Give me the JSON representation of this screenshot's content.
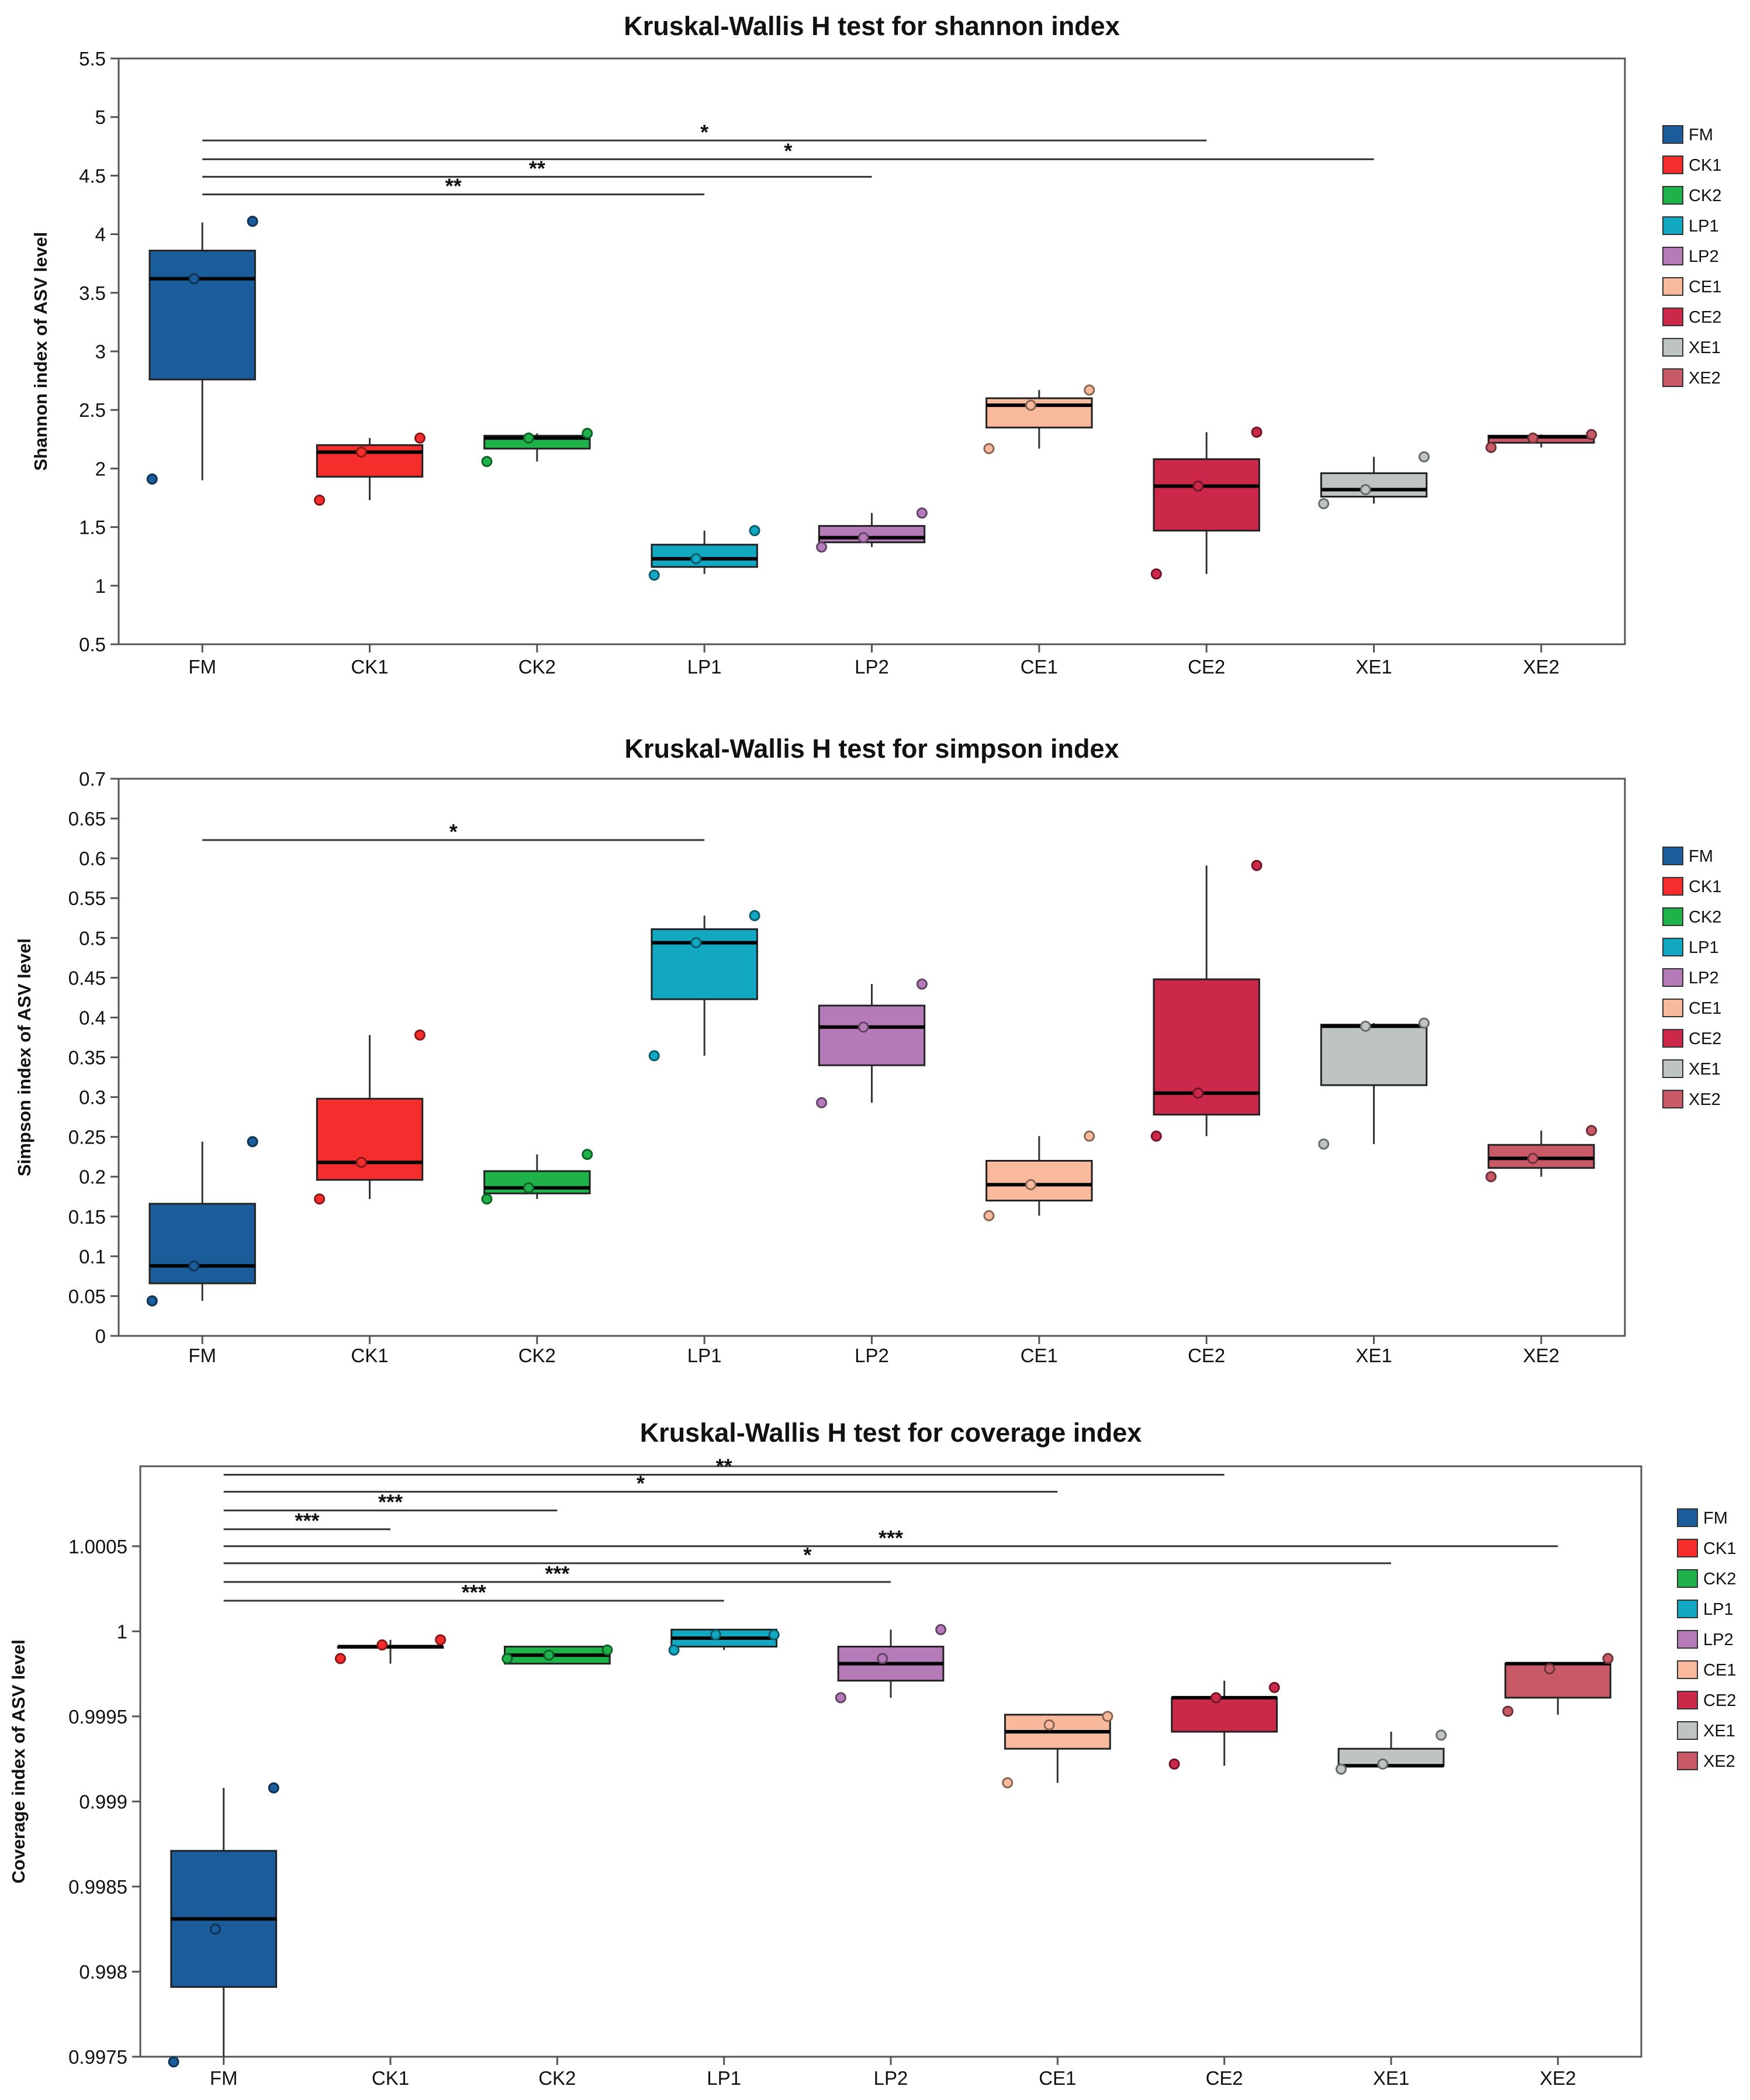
{
  "groups": [
    "FM",
    "CK1",
    "CK2",
    "LP1",
    "LP2",
    "CE1",
    "CE2",
    "XE1",
    "XE2"
  ],
  "colors": {
    "FM": "#1a5d9a",
    "CK1": "#f52d2d",
    "CK2": "#1fb24a",
    "LP1": "#12a8c2",
    "LP2": "#b47bb8",
    "CE1": "#f8b99c",
    "CE2": "#cc2849",
    "XE1": "#bdc4c3",
    "XE2": "#c75a66"
  },
  "chart_data": [
    {
      "type": "box",
      "title": "Kruskal-Wallis H test for shannon index",
      "ylabel": "Shannon index of ASV level",
      "xlabel": "",
      "ylim": [
        0.5,
        5.5
      ],
      "yticks": [
        0.5,
        1,
        1.5,
        2,
        2.5,
        3,
        3.5,
        4,
        4.5,
        5,
        5.5
      ],
      "ytick_labels": [
        "0.5",
        "1",
        "1.5",
        "2",
        "2.5",
        "3",
        "3.5",
        "4",
        "4.5",
        "5",
        "5.5"
      ],
      "categories": [
        "FM",
        "CK1",
        "CK2",
        "LP1",
        "LP2",
        "CE1",
        "CE2",
        "XE1",
        "XE2"
      ],
      "boxes": [
        {
          "group": "FM",
          "whisker_low": 1.9,
          "q1": 2.76,
          "median": 3.62,
          "q3": 3.86,
          "whisker_high": 4.1,
          "points": [
            1.91,
            3.62,
            4.11
          ]
        },
        {
          "group": "CK1",
          "whisker_low": 1.73,
          "q1": 1.93,
          "median": 2.14,
          "q3": 2.2,
          "whisker_high": 2.26,
          "points": [
            1.73,
            2.14,
            2.26
          ]
        },
        {
          "group": "CK2",
          "whisker_low": 2.06,
          "q1": 2.17,
          "median": 2.26,
          "q3": 2.28,
          "whisker_high": 2.3,
          "points": [
            2.06,
            2.26,
            2.3
          ]
        },
        {
          "group": "LP1",
          "whisker_low": 1.1,
          "q1": 1.16,
          "median": 1.23,
          "q3": 1.35,
          "whisker_high": 1.47,
          "points": [
            1.09,
            1.23,
            1.47
          ]
        },
        {
          "group": "LP2",
          "whisker_low": 1.33,
          "q1": 1.37,
          "median": 1.41,
          "q3": 1.51,
          "whisker_high": 1.62,
          "points": [
            1.33,
            1.41,
            1.62
          ]
        },
        {
          "group": "CE1",
          "whisker_low": 2.17,
          "q1": 2.35,
          "median": 2.54,
          "q3": 2.6,
          "whisker_high": 2.67,
          "points": [
            2.17,
            2.54,
            2.67
          ]
        },
        {
          "group": "CE2",
          "whisker_low": 1.1,
          "q1": 1.47,
          "median": 1.85,
          "q3": 2.08,
          "whisker_high": 2.31,
          "points": [
            1.1,
            1.85,
            2.31
          ]
        },
        {
          "group": "XE1",
          "whisker_low": 1.7,
          "q1": 1.76,
          "median": 1.82,
          "q3": 1.96,
          "whisker_high": 2.1,
          "points": [
            1.7,
            1.82,
            2.1
          ]
        },
        {
          "group": "XE2",
          "whisker_low": 2.18,
          "q1": 2.22,
          "median": 2.27,
          "q3": 2.28,
          "whisker_high": 2.29,
          "points": [
            2.18,
            2.26,
            2.29
          ]
        }
      ],
      "significance": [
        {
          "from": "FM",
          "to": "CE2",
          "y": 4.8,
          "label": "*"
        },
        {
          "from": "FM",
          "to": "XE1",
          "y": 4.64,
          "label": "*"
        },
        {
          "from": "FM",
          "to": "LP2",
          "y": 4.49,
          "label": "**"
        },
        {
          "from": "FM",
          "to": "LP1",
          "y": 4.34,
          "label": "**"
        }
      ]
    },
    {
      "type": "box",
      "title": "Kruskal-Wallis H test for simpson index",
      "ylabel": "Simpson index of ASV level",
      "xlabel": "",
      "ylim": [
        0,
        0.7
      ],
      "yticks": [
        0,
        0.05,
        0.1,
        0.15,
        0.2,
        0.25,
        0.3,
        0.35,
        0.4,
        0.45,
        0.5,
        0.55,
        0.6,
        0.65,
        0.7
      ],
      "ytick_labels": [
        "0",
        "0.05",
        "0.1",
        "0.15",
        "0.2",
        "0.25",
        "0.3",
        "0.35",
        "0.4",
        "0.45",
        "0.5",
        "0.55",
        "0.6",
        "0.65",
        "0.7"
      ],
      "categories": [
        "FM",
        "CK1",
        "CK2",
        "LP1",
        "LP2",
        "CE1",
        "CE2",
        "XE1",
        "XE2"
      ],
      "boxes": [
        {
          "group": "FM",
          "whisker_low": 0.044,
          "q1": 0.066,
          "median": 0.088,
          "q3": 0.166,
          "whisker_high": 0.244,
          "points": [
            0.044,
            0.088,
            0.244
          ]
        },
        {
          "group": "CK1",
          "whisker_low": 0.172,
          "q1": 0.196,
          "median": 0.218,
          "q3": 0.298,
          "whisker_high": 0.378,
          "points": [
            0.172,
            0.218,
            0.378
          ]
        },
        {
          "group": "CK2",
          "whisker_low": 0.172,
          "q1": 0.179,
          "median": 0.186,
          "q3": 0.207,
          "whisker_high": 0.228,
          "points": [
            0.172,
            0.186,
            0.228
          ]
        },
        {
          "group": "LP1",
          "whisker_low": 0.352,
          "q1": 0.423,
          "median": 0.494,
          "q3": 0.511,
          "whisker_high": 0.528,
          "points": [
            0.352,
            0.494,
            0.528
          ]
        },
        {
          "group": "LP2",
          "whisker_low": 0.293,
          "q1": 0.34,
          "median": 0.388,
          "q3": 0.415,
          "whisker_high": 0.442,
          "points": [
            0.293,
            0.388,
            0.442
          ]
        },
        {
          "group": "CE1",
          "whisker_low": 0.151,
          "q1": 0.17,
          "median": 0.19,
          "q3": 0.22,
          "whisker_high": 0.251,
          "points": [
            0.151,
            0.19,
            0.251
          ]
        },
        {
          "group": "CE2",
          "whisker_low": 0.251,
          "q1": 0.278,
          "median": 0.305,
          "q3": 0.448,
          "whisker_high": 0.591,
          "points": [
            0.251,
            0.305,
            0.591
          ]
        },
        {
          "group": "XE1",
          "whisker_low": 0.241,
          "q1": 0.315,
          "median": 0.389,
          "q3": 0.391,
          "whisker_high": 0.393,
          "points": [
            0.241,
            0.389,
            0.393
          ]
        },
        {
          "group": "XE2",
          "whisker_low": 0.2,
          "q1": 0.211,
          "median": 0.223,
          "q3": 0.24,
          "whisker_high": 0.258,
          "points": [
            0.2,
            0.223,
            0.258
          ]
        }
      ],
      "significance": [
        {
          "from": "FM",
          "to": "LP1",
          "y": 0.623,
          "label": "*"
        }
      ]
    },
    {
      "type": "box",
      "title": "Kruskal-Wallis H test for coverage index",
      "ylabel": "Coverage index of ASV level",
      "xlabel": "",
      "ylim": [
        0.9975,
        1.00097
      ],
      "yticks": [
        0.9975,
        0.998,
        0.9985,
        0.999,
        0.9995,
        1,
        1.0005
      ],
      "ytick_labels": [
        "0.9975",
        "0.998",
        "0.9985",
        "0.999",
        "0.9995",
        "1",
        "1.0005"
      ],
      "categories": [
        "FM",
        "CK1",
        "CK2",
        "LP1",
        "LP2",
        "CE1",
        "CE2",
        "XE1",
        "XE2"
      ],
      "boxes": [
        {
          "group": "FM",
          "whisker_low": 0.9975,
          "q1": 0.99791,
          "median": 0.99831,
          "q3": 0.99871,
          "whisker_high": 0.99908,
          "points": [
            0.99747,
            0.99825,
            0.99908
          ]
        },
        {
          "group": "CK1",
          "whisker_low": 0.99981,
          "q1": 0.99991,
          "median": 0.99991,
          "q3": 0.99991,
          "whisker_high": 0.99995,
          "points": [
            0.99984,
            0.99992,
            0.99995
          ]
        },
        {
          "group": "CK2",
          "whisker_low": 0.99981,
          "q1": 0.99981,
          "median": 0.99986,
          "q3": 0.99991,
          "whisker_high": 0.99991,
          "points": [
            0.99984,
            0.99986,
            0.99989
          ]
        },
        {
          "group": "LP1",
          "whisker_low": 0.99989,
          "q1": 0.99991,
          "median": 0.99996,
          "q3": 1.00001,
          "whisker_high": 1.00001,
          "points": [
            0.99989,
            0.99998,
            0.99998
          ]
        },
        {
          "group": "LP2",
          "whisker_low": 0.99961,
          "q1": 0.99971,
          "median": 0.99981,
          "q3": 0.99991,
          "whisker_high": 1.00001,
          "points": [
            0.99961,
            0.99984,
            1.00001
          ]
        },
        {
          "group": "CE1",
          "whisker_low": 0.99911,
          "q1": 0.99931,
          "median": 0.99941,
          "q3": 0.99951,
          "whisker_high": 0.99951,
          "points": [
            0.99911,
            0.99945,
            0.9995
          ]
        },
        {
          "group": "CE2",
          "whisker_low": 0.99921,
          "q1": 0.99941,
          "median": 0.99961,
          "q3": 0.99961,
          "whisker_high": 0.99971,
          "points": [
            0.99922,
            0.99961,
            0.99967
          ]
        },
        {
          "group": "XE1",
          "whisker_low": 0.99921,
          "q1": 0.99921,
          "median": 0.99921,
          "q3": 0.99931,
          "whisker_high": 0.99941,
          "points": [
            0.99919,
            0.99922,
            0.99939
          ]
        },
        {
          "group": "XE2",
          "whisker_low": 0.99951,
          "q1": 0.99961,
          "median": 0.99981,
          "q3": 0.99981,
          "whisker_high": 0.99981,
          "points": [
            0.99953,
            0.99978,
            0.99984
          ]
        }
      ],
      "significance": [
        {
          "from": "FM",
          "to": "CE2",
          "y": 1.00092,
          "label": "**"
        },
        {
          "from": "FM",
          "to": "CE1",
          "y": 1.00082,
          "label": "*"
        },
        {
          "from": "FM",
          "to": "CK2",
          "y": 1.00071,
          "label": "***"
        },
        {
          "from": "FM",
          "to": "CK1",
          "y": 1.0006,
          "label": "***"
        },
        {
          "from": "FM",
          "to": "XE2",
          "y": 1.0005,
          "label": "***"
        },
        {
          "from": "FM",
          "to": "XE1",
          "y": 1.0004,
          "label": "*"
        },
        {
          "from": "FM",
          "to": "LP2",
          "y": 1.00029,
          "label": "***"
        },
        {
          "from": "FM",
          "to": "LP1",
          "y": 1.00018,
          "label": "***"
        }
      ]
    }
  ]
}
